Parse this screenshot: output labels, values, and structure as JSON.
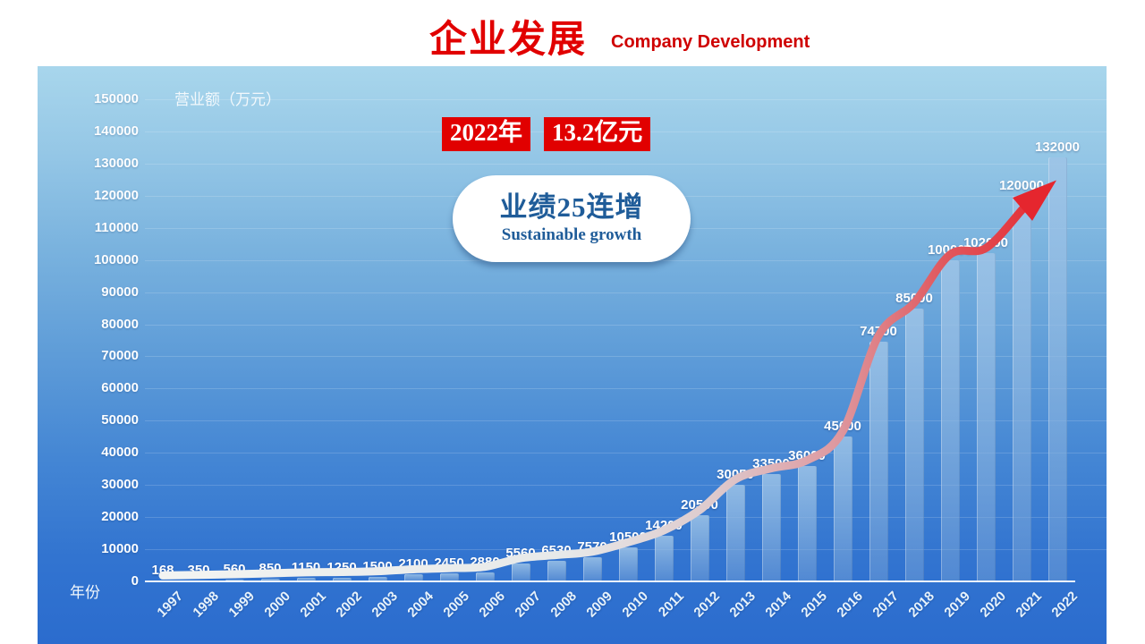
{
  "header": {
    "title_zh": "企业发展",
    "title_en": "Company Development"
  },
  "callout": {
    "year_badge": "2022年",
    "amount_badge": "13.2亿元",
    "bubble_line1": "业绩25连增",
    "bubble_line2": "Sustainable growth"
  },
  "chart_data": {
    "type": "bar",
    "title": "企业发展 Company Development",
    "xlabel": "年份",
    "ylabel": "营业额（万元）",
    "categories": [
      "1997",
      "1998",
      "1999",
      "2000",
      "2001",
      "2002",
      "2003",
      "2004",
      "2005",
      "2006",
      "2007",
      "2008",
      "2009",
      "2010",
      "2011",
      "2012",
      "2013",
      "2014",
      "2015",
      "2016",
      "2017",
      "2018",
      "2019",
      "2020",
      "2021",
      "2022"
    ],
    "values": [
      168,
      350,
      560,
      850,
      1150,
      1250,
      1500,
      2100,
      2450,
      2880,
      5560,
      6530,
      7570,
      10500,
      14200,
      20500,
      30050,
      33500,
      36000,
      45000,
      74700,
      85000,
      100000,
      102000,
      120000,
      132000
    ],
    "ylim": [
      0,
      150000
    ],
    "ytick_step": 10000,
    "yticks": [
      0,
      10000,
      20000,
      30000,
      40000,
      50000,
      60000,
      70000,
      80000,
      90000,
      100000,
      110000,
      120000,
      130000,
      140000,
      150000
    ],
    "grid": true,
    "legend": "none",
    "data_labels": true,
    "annotation": "curved growth arrow from 1997 baseline to 2022, white fading to red with red arrowhead",
    "colors": {
      "accent_red": "#e10000",
      "bar_fill": "#7ea9d8",
      "panel_top": "#a8d6ec",
      "panel_bottom": "#2b6cce",
      "label_text": "#ffffff",
      "bubble_text": "#1f5c99",
      "arrow_start": "#f3f4f2",
      "arrow_end": "#e5262e"
    }
  }
}
